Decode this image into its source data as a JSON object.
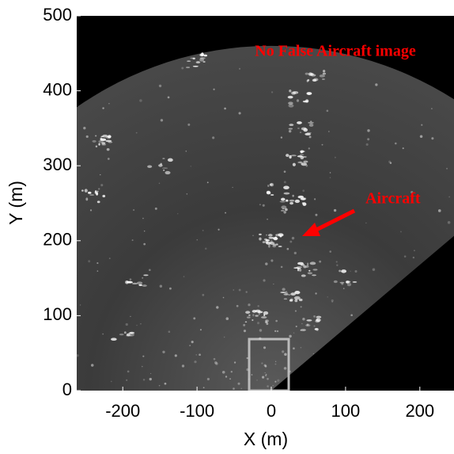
{
  "chart_data": {
    "type": "image",
    "xlabel": "X (m)",
    "ylabel": "Y (m)",
    "xlim": [
      -262,
      246
    ],
    "ylim": [
      0,
      500
    ],
    "xticks": [
      -200,
      -100,
      0,
      100,
      200
    ],
    "yticks": [
      0,
      100,
      200,
      300,
      400,
      500
    ],
    "annotations": [
      {
        "text": "No False Aircraft image",
        "color": "#ff0000"
      },
      {
        "text": "Aircraft",
        "color": "#ff0000"
      }
    ]
  }
}
